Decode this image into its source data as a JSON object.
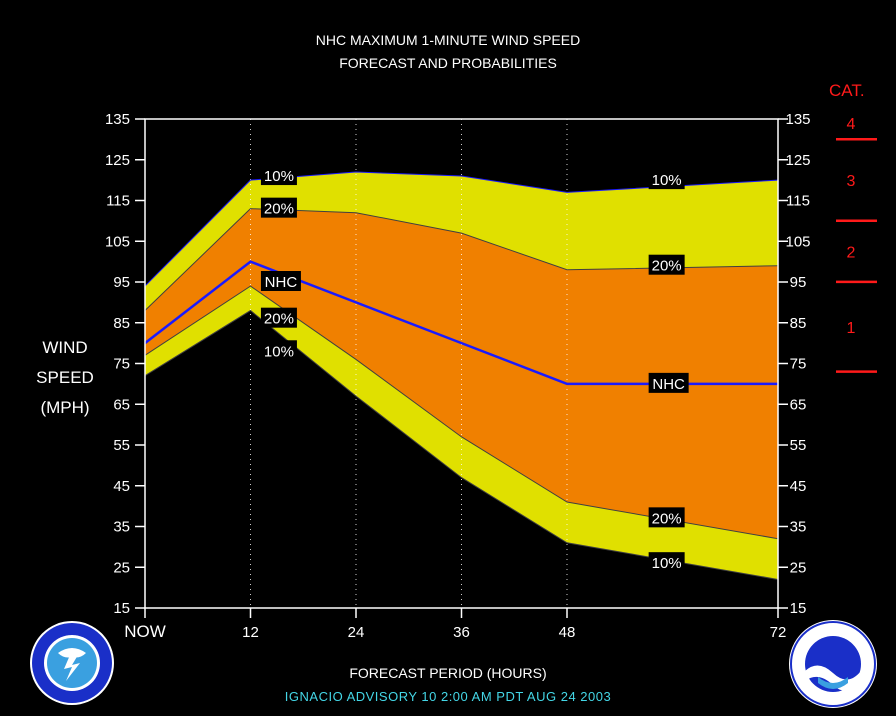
{
  "title_line1": "NHC MAXIMUM 1-MINUTE WIND SPEED",
  "title_line2": "FORECAST AND PROBABILITIES",
  "ylabel_lines": [
    "WIND",
    "SPEED",
    "(MPH)"
  ],
  "xlabel": "FORECAST PERIOD (HOURS)",
  "advisory": "IGNACIO   ADVISORY  10 2:00  AM  PDT  AUG 24  2003",
  "colors": {
    "outer_band": "#e0e000",
    "inner_band": "#f08000",
    "nhc_line": "#1a1aff",
    "category": "#ff1a1a",
    "background": "#000000"
  },
  "category_scale": {
    "title": "CAT.",
    "levels": [
      {
        "label": "1",
        "min": 74
      },
      {
        "label": "2",
        "min": 96
      },
      {
        "label": "3",
        "min": 111
      },
      {
        "label": "4",
        "min": 131
      }
    ]
  },
  "chart_data": {
    "type": "area",
    "x": [
      0,
      12,
      24,
      36,
      48,
      72
    ],
    "x_tick_labels": [
      "NOW",
      "12",
      "24",
      "36",
      "48",
      "72"
    ],
    "xlim": [
      0,
      72
    ],
    "ylim": [
      15,
      135
    ],
    "y_ticks": [
      15,
      25,
      35,
      45,
      55,
      65,
      75,
      85,
      95,
      105,
      115,
      125,
      135
    ],
    "grid": "dotted vertical at forecast hours",
    "series": [
      {
        "name": "10%",
        "band": "upper",
        "values": [
          94,
          120,
          122,
          121,
          117,
          120
        ]
      },
      {
        "name": "20%",
        "band": "upper",
        "values": [
          88,
          113,
          112,
          107,
          98,
          99
        ]
      },
      {
        "name": "NHC",
        "values": [
          80,
          100,
          90,
          80,
          70,
          70
        ]
      },
      {
        "name": "20%",
        "band": "lower",
        "values": [
          77,
          94,
          76,
          57,
          41,
          32
        ]
      },
      {
        "name": "10%",
        "band": "lower",
        "values": [
          72,
          88,
          67,
          47,
          31,
          22
        ]
      }
    ],
    "annotations": [
      {
        "text": "10%",
        "x": 13.3,
        "y": 121
      },
      {
        "text": "20%",
        "x": 13.3,
        "y": 113
      },
      {
        "text": "NHC",
        "x": 13.3,
        "y": 95
      },
      {
        "text": "20%",
        "x": 13.3,
        "y": 86
      },
      {
        "text": "10%",
        "x": 13.3,
        "y": 78
      },
      {
        "text": "10%",
        "x": 57.4,
        "y": 120
      },
      {
        "text": "20%",
        "x": 57.4,
        "y": 99
      },
      {
        "text": "NHC",
        "x": 57.4,
        "y": 70
      },
      {
        "text": "20%",
        "x": 57.4,
        "y": 37
      },
      {
        "text": "10%",
        "x": 57.4,
        "y": 26
      }
    ]
  }
}
